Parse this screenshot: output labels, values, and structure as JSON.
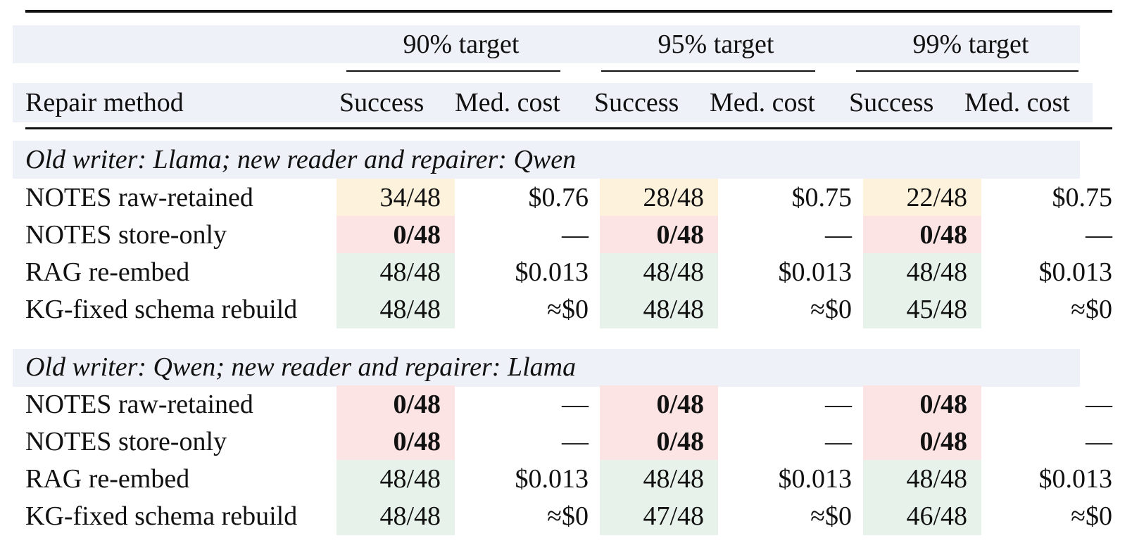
{
  "table": {
    "group_headers": [
      "90% target",
      "95% target",
      "99% target"
    ],
    "column_headers": {
      "method": "Repair method",
      "success": "Success",
      "cost": "Med. cost"
    },
    "cell_colors": {
      "partial": "#fdf2dc",
      "fail": "#fce4e4",
      "pass": "#e7f3ea",
      "band": "#eef2f8"
    },
    "sections": [
      {
        "title": "Old writer: Llama; new reader and repairer: Qwen",
        "rows": [
          {
            "method": "NOTES raw-retained",
            "cells": [
              {
                "s": "34/48",
                "c": "$0.76",
                "tone": "partial"
              },
              {
                "s": "28/48",
                "c": "$0.75",
                "tone": "partial"
              },
              {
                "s": "22/48",
                "c": "$0.75",
                "tone": "partial"
              }
            ]
          },
          {
            "method": "NOTES store-only",
            "cells": [
              {
                "s": "0/48",
                "c": "—",
                "tone": "fail"
              },
              {
                "s": "0/48",
                "c": "—",
                "tone": "fail"
              },
              {
                "s": "0/48",
                "c": "—",
                "tone": "fail"
              }
            ]
          },
          {
            "method": "RAG re-embed",
            "cells": [
              {
                "s": "48/48",
                "c": "$0.013",
                "tone": "pass"
              },
              {
                "s": "48/48",
                "c": "$0.013",
                "tone": "pass"
              },
              {
                "s": "48/48",
                "c": "$0.013",
                "tone": "pass"
              }
            ]
          },
          {
            "method": "KG-fixed schema rebuild",
            "cells": [
              {
                "s": "48/48",
                "c": "≈$0",
                "tone": "pass"
              },
              {
                "s": "48/48",
                "c": "≈$0",
                "tone": "pass"
              },
              {
                "s": "45/48",
                "c": "≈$0",
                "tone": "pass"
              }
            ]
          }
        ]
      },
      {
        "title": "Old writer: Qwen; new reader and repairer: Llama",
        "rows": [
          {
            "method": "NOTES raw-retained",
            "cells": [
              {
                "s": "0/48",
                "c": "—",
                "tone": "fail"
              },
              {
                "s": "0/48",
                "c": "—",
                "tone": "fail"
              },
              {
                "s": "0/48",
                "c": "—",
                "tone": "fail"
              }
            ]
          },
          {
            "method": "NOTES store-only",
            "cells": [
              {
                "s": "0/48",
                "c": "—",
                "tone": "fail"
              },
              {
                "s": "0/48",
                "c": "—",
                "tone": "fail"
              },
              {
                "s": "0/48",
                "c": "—",
                "tone": "fail"
              }
            ]
          },
          {
            "method": "RAG re-embed",
            "cells": [
              {
                "s": "48/48",
                "c": "$0.013",
                "tone": "pass"
              },
              {
                "s": "48/48",
                "c": "$0.013",
                "tone": "pass"
              },
              {
                "s": "48/48",
                "c": "$0.013",
                "tone": "pass"
              }
            ]
          },
          {
            "method": "KG-fixed schema rebuild",
            "cells": [
              {
                "s": "48/48",
                "c": "≈$0",
                "tone": "pass"
              },
              {
                "s": "47/48",
                "c": "≈$0",
                "tone": "pass"
              },
              {
                "s": "46/48",
                "c": "≈$0",
                "tone": "pass"
              }
            ]
          }
        ]
      }
    ]
  }
}
